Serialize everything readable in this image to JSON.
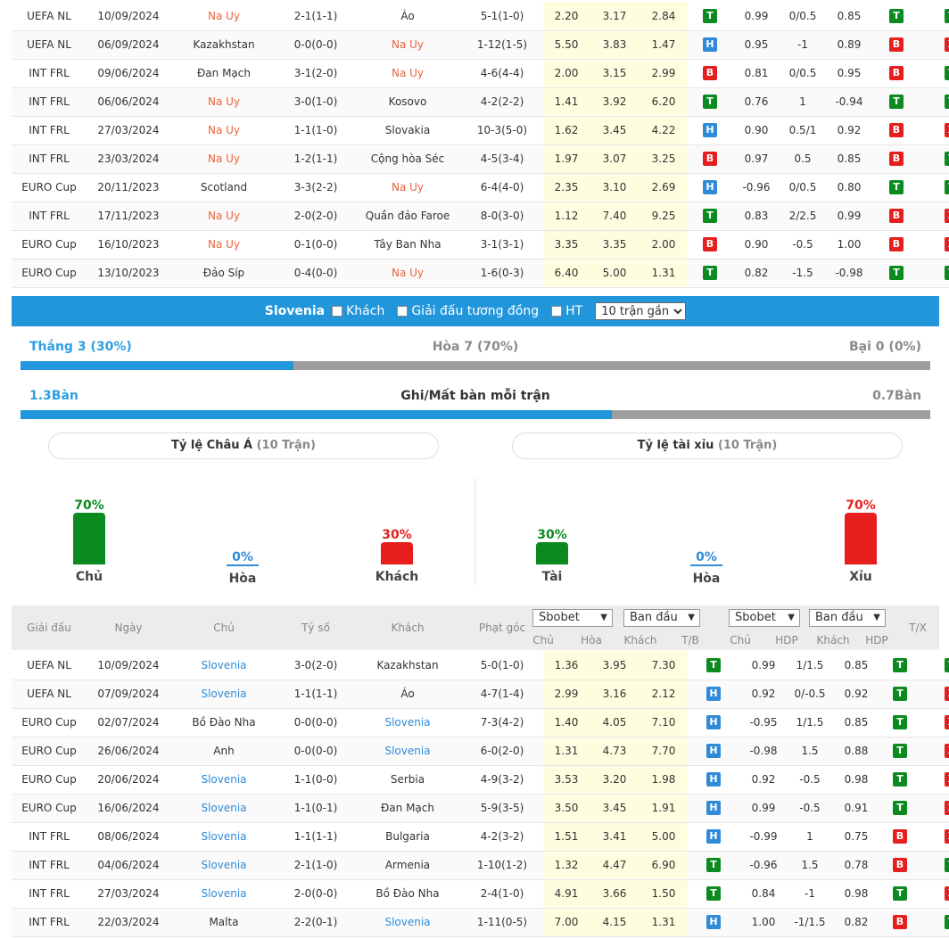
{
  "top_matches": [
    {
      "league": "UEFA NL",
      "date": "10/09/2024",
      "home": "Na Uy",
      "home_hl": true,
      "score": "2-1(1-1)",
      "away": "Áo",
      "away_hl": false,
      "corner": "5-1(1-0)",
      "o1": "2.20",
      "ox": "3.17",
      "o2": "2.84",
      "r1": "T",
      "a1": "0.99",
      "hdp": "0/0.5",
      "a2": "0.85",
      "r2": "T",
      "r3": "T"
    },
    {
      "league": "UEFA NL",
      "date": "06/09/2024",
      "home": "Kazakhstan",
      "home_hl": false,
      "score": "0-0(0-0)",
      "away": "Na Uy",
      "away_hl": true,
      "corner": "1-12(1-5)",
      "o1": "5.50",
      "ox": "3.83",
      "o2": "1.47",
      "r1": "H",
      "a1": "0.95",
      "hdp": "-1",
      "a2": "0.89",
      "r2": "B",
      "r3": "X"
    },
    {
      "league": "INT FRL",
      "date": "09/06/2024",
      "home": "Đan Mạch",
      "home_hl": false,
      "score": "3-1(2-0)",
      "away": "Na Uy",
      "away_hl": true,
      "corner": "4-6(4-4)",
      "o1": "2.00",
      "ox": "3.15",
      "o2": "2.99",
      "r1": "B",
      "a1": "0.81",
      "hdp": "0/0.5",
      "a2": "0.95",
      "r2": "B",
      "r3": "T"
    },
    {
      "league": "INT FRL",
      "date": "06/06/2024",
      "home": "Na Uy",
      "home_hl": true,
      "score": "3-0(1-0)",
      "away": "Kosovo",
      "away_hl": false,
      "corner": "4-2(2-2)",
      "o1": "1.41",
      "ox": "3.92",
      "o2": "6.20",
      "r1": "T",
      "a1": "0.76",
      "hdp": "1",
      "a2": "-0.94",
      "r2": "T",
      "r3": "T"
    },
    {
      "league": "INT FRL",
      "date": "27/03/2024",
      "home": "Na Uy",
      "home_hl": true,
      "score": "1-1(1-0)",
      "away": "Slovakia",
      "away_hl": false,
      "corner": "10-3(5-0)",
      "o1": "1.62",
      "ox": "3.45",
      "o2": "4.22",
      "r1": "H",
      "a1": "0.90",
      "hdp": "0.5/1",
      "a2": "0.92",
      "r2": "B",
      "r3": "X"
    },
    {
      "league": "INT FRL",
      "date": "23/03/2024",
      "home": "Na Uy",
      "home_hl": true,
      "score": "1-2(1-1)",
      "away": "Cộng hòa Séc",
      "away_hl": false,
      "corner": "4-5(3-4)",
      "o1": "1.97",
      "ox": "3.07",
      "o2": "3.25",
      "r1": "B",
      "a1": "0.97",
      "hdp": "0.5",
      "a2": "0.85",
      "r2": "B",
      "r3": "T"
    },
    {
      "league": "EURO Cup",
      "date": "20/11/2023",
      "home": "Scotland",
      "home_hl": false,
      "score": "3-3(2-2)",
      "away": "Na Uy",
      "away_hl": true,
      "corner": "6-4(4-0)",
      "o1": "2.35",
      "ox": "3.10",
      "o2": "2.69",
      "r1": "H",
      "a1": "-0.96",
      "hdp": "0/0.5",
      "a2": "0.80",
      "r2": "T",
      "r3": "T"
    },
    {
      "league": "INT FRL",
      "date": "17/11/2023",
      "home": "Na Uy",
      "home_hl": true,
      "score": "2-0(2-0)",
      "away": "Quần đảo Faroe",
      "away_hl": false,
      "corner": "8-0(3-0)",
      "o1": "1.12",
      "ox": "7.40",
      "o2": "9.25",
      "r1": "T",
      "a1": "0.83",
      "hdp": "2/2.5",
      "a2": "0.99",
      "r2": "B",
      "r3": "X"
    },
    {
      "league": "EURO Cup",
      "date": "16/10/2023",
      "home": "Na Uy",
      "home_hl": true,
      "score": "0-1(0-0)",
      "away": "Tây Ban Nha",
      "away_hl": false,
      "corner": "3-1(3-1)",
      "o1": "3.35",
      "ox": "3.35",
      "o2": "2.00",
      "r1": "B",
      "a1": "0.90",
      "hdp": "-0.5",
      "a2": "1.00",
      "r2": "B",
      "r3": "X"
    },
    {
      "league": "EURO Cup",
      "date": "13/10/2023",
      "home": "Đảo Síp",
      "home_hl": false,
      "score": "0-4(0-0)",
      "away": "Na Uy",
      "away_hl": true,
      "corner": "1-6(0-3)",
      "o1": "6.40",
      "ox": "5.00",
      "o2": "1.31",
      "r1": "T",
      "a1": "0.82",
      "hdp": "-1.5",
      "a2": "-0.98",
      "r2": "T",
      "r3": "T"
    }
  ],
  "filter": {
    "team": "Slovenia",
    "opt_away": "Khách",
    "opt_same_league": "Giải đấu tương đồng",
    "opt_ht": "HT",
    "recent_select": "10 trận gần"
  },
  "record": {
    "win": "Thắng 3 (30%)",
    "draw": "Hòa 7 (70%)",
    "loss": "Bại 0 (0%)",
    "win_fraction": 0.3
  },
  "goals": {
    "scored": "1.3Bàn",
    "title": "Ghi/Mất bàn mỗi trận",
    "conceded": "0.7Bàn",
    "fill_fraction": 0.65
  },
  "asian": {
    "title": "Tỷ lệ Châu Á",
    "sub": "(10 Trận)",
    "items": [
      {
        "pct": "70%",
        "label": "Chủ",
        "value": 70,
        "color": "#0b8a1f"
      },
      {
        "pct": "0%",
        "label": "Hòa",
        "value": 0,
        "color": "#2f8bd8"
      },
      {
        "pct": "30%",
        "label": "Khách",
        "value": 30,
        "color": "#e61e1e"
      }
    ]
  },
  "overunder": {
    "title": "Tỷ lệ tài xỉu",
    "sub": "(10 Trận)",
    "items": [
      {
        "pct": "30%",
        "label": "Tài",
        "value": 30,
        "color": "#0b8a1f"
      },
      {
        "pct": "0%",
        "label": "Hòa",
        "value": 0,
        "color": "#2f8bd8"
      },
      {
        "pct": "70%",
        "label": "Xỉu",
        "value": 70,
        "color": "#e61e1e"
      }
    ]
  },
  "header": {
    "league": "Giải đấu",
    "date": "Ngày",
    "home": "Chủ",
    "score": "Tỷ số",
    "away": "Khách",
    "corner": "Phạt góc",
    "book1": "Sbobet",
    "type1": "Ban đầu",
    "book2": "Sbobet",
    "type2": "Ban đầu",
    "c_home": "Chủ",
    "c_draw": "Hòa",
    "c_away": "Khách",
    "c_tb": "T/B",
    "a_home": "Chủ",
    "a_hdp": "HDP",
    "a_away": "Khách",
    "a_hdp2": "HDP",
    "tx": "T/X"
  },
  "bottom_matches": [
    {
      "league": "UEFA NL",
      "date": "10/09/2024",
      "home": "Slovenia",
      "home_hl": true,
      "score": "3-0(2-0)",
      "away": "Kazakhstan",
      "away_hl": false,
      "corner": "5-0(1-0)",
      "o1": "1.36",
      "ox": "3.95",
      "o2": "7.30",
      "r1": "T",
      "a1": "0.99",
      "hdp": "1/1.5",
      "a2": "0.85",
      "r2": "T",
      "r3": "T"
    },
    {
      "league": "UEFA NL",
      "date": "07/09/2024",
      "home": "Slovenia",
      "home_hl": true,
      "score": "1-1(1-1)",
      "away": "Áo",
      "away_hl": false,
      "corner": "4-7(1-4)",
      "o1": "2.99",
      "ox": "3.16",
      "o2": "2.12",
      "r1": "H",
      "a1": "0.92",
      "hdp": "0/-0.5",
      "a2": "0.92",
      "r2": "T",
      "r3": "X"
    },
    {
      "league": "EURO Cup",
      "date": "02/07/2024",
      "home": "Bồ Đào Nha",
      "home_hl": false,
      "score": "0-0(0-0)",
      "away": "Slovenia",
      "away_hl": true,
      "corner": "7-3(4-2)",
      "o1": "1.40",
      "ox": "4.05",
      "o2": "7.10",
      "r1": "H",
      "a1": "-0.95",
      "hdp": "1/1.5",
      "a2": "0.85",
      "r2": "T",
      "r3": "X"
    },
    {
      "league": "EURO Cup",
      "date": "26/06/2024",
      "home": "Anh",
      "home_hl": false,
      "score": "0-0(0-0)",
      "away": "Slovenia",
      "away_hl": true,
      "corner": "6-0(2-0)",
      "o1": "1.31",
      "ox": "4.73",
      "o2": "7.70",
      "r1": "H",
      "a1": "-0.98",
      "hdp": "1.5",
      "a2": "0.88",
      "r2": "T",
      "r3": "X"
    },
    {
      "league": "EURO Cup",
      "date": "20/06/2024",
      "home": "Slovenia",
      "home_hl": true,
      "score": "1-1(0-0)",
      "away": "Serbia",
      "away_hl": false,
      "corner": "4-9(3-2)",
      "o1": "3.53",
      "ox": "3.20",
      "o2": "1.98",
      "r1": "H",
      "a1": "0.92",
      "hdp": "-0.5",
      "a2": "0.98",
      "r2": "T",
      "r3": "X"
    },
    {
      "league": "EURO Cup",
      "date": "16/06/2024",
      "home": "Slovenia",
      "home_hl": true,
      "score": "1-1(0-1)",
      "away": "Đan Mạch",
      "away_hl": false,
      "corner": "5-9(3-5)",
      "o1": "3.50",
      "ox": "3.45",
      "o2": "1.91",
      "r1": "H",
      "a1": "0.99",
      "hdp": "-0.5",
      "a2": "0.91",
      "r2": "T",
      "r3": "X"
    },
    {
      "league": "INT FRL",
      "date": "08/06/2024",
      "home": "Slovenia",
      "home_hl": true,
      "score": "1-1(1-1)",
      "away": "Bulgaria",
      "away_hl": false,
      "corner": "4-2(3-2)",
      "o1": "1.51",
      "ox": "3.41",
      "o2": "5.00",
      "r1": "H",
      "a1": "-0.99",
      "hdp": "1",
      "a2": "0.75",
      "r2": "B",
      "r3": "X"
    },
    {
      "league": "INT FRL",
      "date": "04/06/2024",
      "home": "Slovenia",
      "home_hl": true,
      "score": "2-1(1-0)",
      "away": "Armenia",
      "away_hl": false,
      "corner": "1-10(1-2)",
      "o1": "1.32",
      "ox": "4.47",
      "o2": "6.90",
      "r1": "T",
      "a1": "-0.96",
      "hdp": "1.5",
      "a2": "0.78",
      "r2": "B",
      "r3": "T"
    },
    {
      "league": "INT FRL",
      "date": "27/03/2024",
      "home": "Slovenia",
      "home_hl": true,
      "score": "2-0(0-0)",
      "away": "Bồ Đào Nha",
      "away_hl": false,
      "corner": "2-4(1-0)",
      "o1": "4.91",
      "ox": "3.66",
      "o2": "1.50",
      "r1": "T",
      "a1": "0.84",
      "hdp": "-1",
      "a2": "0.98",
      "r2": "T",
      "r3": "X"
    },
    {
      "league": "INT FRL",
      "date": "22/03/2024",
      "home": "Malta",
      "home_hl": false,
      "score": "2-2(0-1)",
      "away": "Slovenia",
      "away_hl": true,
      "corner": "1-11(0-5)",
      "o1": "7.00",
      "ox": "4.15",
      "o2": "1.31",
      "r1": "H",
      "a1": "1.00",
      "hdp": "-1/1.5",
      "a2": "0.82",
      "r2": "B",
      "r3": "T"
    }
  ]
}
